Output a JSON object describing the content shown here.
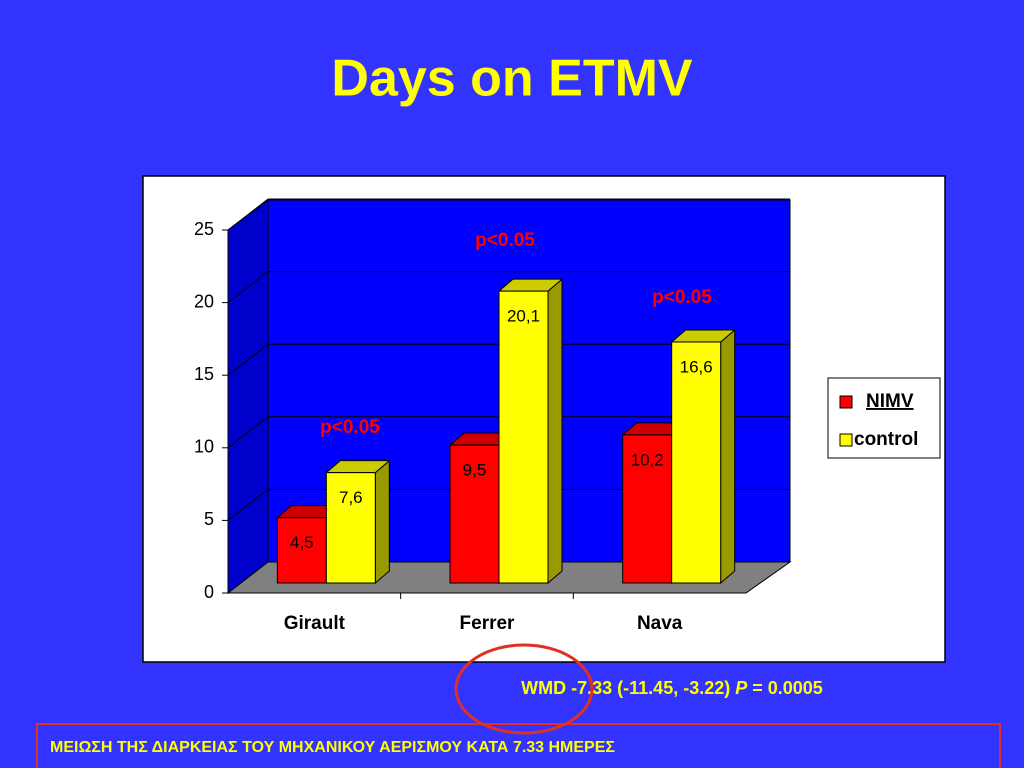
{
  "chart_data": {
    "type": "bar3d",
    "title": "Days on ETMV",
    "categories": [
      "Girault",
      "Ferrer",
      "Nava"
    ],
    "series": [
      {
        "name": "NIMV",
        "color": "#ff0000",
        "values": [
          4.5,
          9.5,
          10.2
        ],
        "value_labels": [
          "4,5",
          "9,5",
          "10,2"
        ]
      },
      {
        "name": "control",
        "color": "#ffff00",
        "values": [
          7.6,
          20.1,
          16.6
        ],
        "value_labels": [
          "7,6",
          "20,1",
          "16,6"
        ]
      }
    ],
    "ylim": [
      0,
      25
    ],
    "yticks": [
      0,
      5,
      10,
      15,
      20,
      25
    ],
    "grid": true,
    "legend": "right",
    "annotations": [
      "p<0.05",
      "p<0.05",
      "p<0.05"
    ]
  },
  "footer": {
    "parts": [
      "WMD -7.33 (-11.45, -3.22) ",
      "P",
      " = 0.0005"
    ]
  },
  "note": "ΜΕΙΩΣΗ ΤΗΣ ΔΙΑΡΚΕΙΑΣ ΤΟΥ ΜΗΧΑΝΙΚΟΥ ΑΕΡΙΣΜΟΥ ΚΑΤΑ 7.33 ΗΜΕΡΕΣ"
}
